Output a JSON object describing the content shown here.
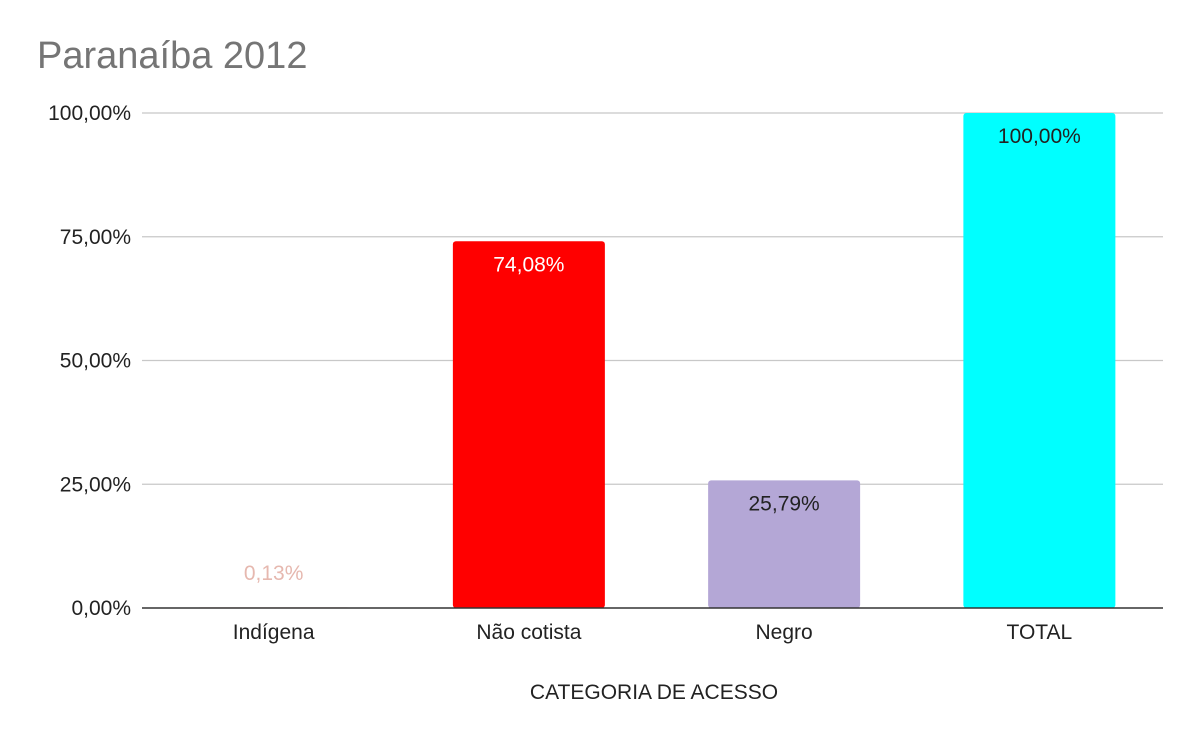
{
  "chart_data": {
    "type": "bar",
    "title": "Paranaíba 2012",
    "xlabel": "CATEGORIA DE ACESSO",
    "ylabel": "",
    "categories": [
      "Indígena",
      "Não cotista",
      "Negro",
      "TOTAL"
    ],
    "values": [
      0.13,
      74.08,
      25.79,
      100.0
    ],
    "value_labels": [
      "0,13%",
      "74,08%",
      "25,79%",
      "100,00%"
    ],
    "colors": [
      "#e6b8af",
      "#ff0000",
      "#b4a7d6",
      "#00ffff"
    ],
    "label_colors": [
      "#e6b8af",
      "#ffffff",
      "#222222",
      "#222222"
    ],
    "ylim": [
      0,
      100
    ],
    "yticks": [
      0,
      25,
      50,
      75,
      100
    ],
    "ytick_labels": [
      "0,00%",
      "25,00%",
      "50,00%",
      "75,00%",
      "100,00%"
    ],
    "grid": true,
    "legend": "none"
  }
}
